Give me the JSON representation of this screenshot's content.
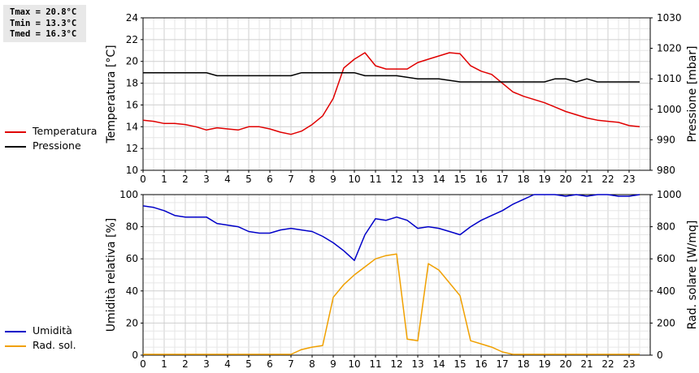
{
  "stats": {
    "tmax": "Tmax = 20.8°C",
    "tmin": "Tmin = 13.3°C",
    "tmed": "Tmed = 16.3°C"
  },
  "legend_top": [
    {
      "label": "Temperatura",
      "color": "#e00000"
    },
    {
      "label": "Pressione",
      "color": "#000000"
    }
  ],
  "legend_bottom": [
    {
      "label": "Umidità",
      "color": "#0000c8"
    },
    {
      "label": "Rad. sol.",
      "color": "#f0a000"
    }
  ],
  "chart_data": [
    {
      "type": "line",
      "xlim": [
        0,
        24
      ],
      "xticks": [
        "0",
        "1",
        "2",
        "3",
        "4",
        "5",
        "6",
        "7",
        "8",
        "9",
        "10",
        "11",
        "12",
        "13",
        "14",
        "15",
        "16",
        "17",
        "18",
        "19",
        "20",
        "21",
        "22",
        "23"
      ],
      "ylabel": "Temperatura [°C]",
      "ylim": [
        10,
        24
      ],
      "yticks": [
        "10",
        "12",
        "14",
        "16",
        "18",
        "20",
        "22",
        "24"
      ],
      "ylabel_right": "Pressione [mbar]",
      "ylim_right": [
        980,
        1030
      ],
      "yticks_right": [
        "980",
        "990",
        "1000",
        "1010",
        "1020",
        "1030"
      ],
      "grid": true,
      "series": [
        {
          "name": "Temperatura",
          "axis": "left",
          "color": "#e00000",
          "x": [
            0,
            0.5,
            1,
            1.5,
            2,
            2.5,
            3,
            3.5,
            4,
            4.5,
            5,
            5.5,
            6,
            6.5,
            7,
            7.5,
            8,
            8.5,
            9,
            9.5,
            10,
            10.25,
            10.5,
            11,
            11.5,
            12,
            12.5,
            13,
            13.5,
            14,
            14.5,
            15,
            15.5,
            16,
            16.5,
            17,
            17.5,
            18,
            18.5,
            19,
            19.5,
            20,
            20.5,
            21,
            21.5,
            22,
            22.5,
            23,
            23.5
          ],
          "y": [
            14.6,
            14.5,
            14.3,
            14.3,
            14.2,
            14.0,
            13.7,
            13.9,
            13.8,
            13.7,
            14.0,
            14.0,
            13.8,
            13.5,
            13.3,
            13.6,
            14.2,
            15.0,
            16.6,
            19.4,
            20.2,
            20.5,
            20.8,
            19.6,
            19.3,
            19.3,
            19.3,
            19.9,
            20.2,
            20.5,
            20.8,
            20.7,
            19.6,
            19.1,
            18.8,
            18.0,
            17.2,
            16.8,
            16.5,
            16.2,
            15.8,
            15.4,
            15.1,
            14.8,
            14.6,
            14.5,
            14.4,
            14.1,
            14.0
          ]
        },
        {
          "name": "Pressione",
          "axis": "right",
          "color": "#000000",
          "x": [
            0,
            1,
            2,
            3,
            3.5,
            4,
            5,
            6,
            7,
            7.5,
            8,
            9,
            10,
            10.5,
            11,
            12,
            13,
            14,
            15,
            16,
            17,
            18,
            19,
            19.5,
            20,
            20.5,
            21,
            21.5,
            22,
            23,
            23.5
          ],
          "y": [
            1012,
            1012,
            1012,
            1012,
            1011,
            1011,
            1011,
            1011,
            1011,
            1012,
            1012,
            1012,
            1012,
            1011,
            1011,
            1011,
            1010,
            1010,
            1009,
            1009,
            1009,
            1009,
            1009,
            1010,
            1010,
            1009,
            1010,
            1009,
            1009,
            1009,
            1009
          ]
        }
      ]
    },
    {
      "type": "line",
      "xlim": [
        0,
        24
      ],
      "xticks": [
        "0",
        "1",
        "2",
        "3",
        "4",
        "5",
        "6",
        "7",
        "8",
        "9",
        "10",
        "11",
        "12",
        "13",
        "14",
        "15",
        "16",
        "17",
        "18",
        "19",
        "20",
        "21",
        "22",
        "23"
      ],
      "ylabel": "Umidità relativa [%]",
      "ylim": [
        0,
        100
      ],
      "yticks": [
        "0",
        "20",
        "40",
        "60",
        "80",
        "100"
      ],
      "ylabel_right": "Rad. solare [W/mq]",
      "ylim_right": [
        0,
        1000
      ],
      "yticks_right": [
        "0",
        "200",
        "400",
        "600",
        "800",
        "1000"
      ],
      "grid": true,
      "series": [
        {
          "name": "Umidità",
          "axis": "left",
          "color": "#0000c8",
          "x": [
            0,
            0.5,
            1,
            1.5,
            2,
            2.5,
            3,
            3.5,
            4,
            4.5,
            5,
            5.5,
            6,
            6.5,
            7,
            7.5,
            8,
            8.5,
            9,
            9.5,
            10,
            10.5,
            11,
            11.5,
            12,
            12.5,
            13,
            13.5,
            14,
            14.5,
            15,
            15.5,
            16,
            16.5,
            17,
            17.5,
            18,
            18.5,
            19,
            19.5,
            20,
            20.5,
            21,
            21.5,
            22,
            22.5,
            23,
            23.5
          ],
          "y": [
            93,
            92,
            90,
            87,
            86,
            86,
            86,
            82,
            81,
            80,
            77,
            76,
            76,
            78,
            79,
            78,
            77,
            74,
            70,
            65,
            59,
            75,
            85,
            84,
            86,
            84,
            79,
            80,
            79,
            77,
            75,
            80,
            84,
            87,
            90,
            94,
            97,
            100,
            100,
            100,
            99,
            100,
            99,
            100,
            100,
            99,
            99,
            100
          ]
        },
        {
          "name": "Rad. sol.",
          "axis": "right",
          "color": "#f0a000",
          "x": [
            0,
            1,
            2,
            3,
            4,
            5,
            6,
            7,
            7.5,
            8,
            8.5,
            9,
            9.5,
            10,
            10.5,
            11,
            11.5,
            12,
            12.5,
            13,
            13.5,
            14,
            14.5,
            15,
            15.5,
            16,
            16.5,
            17,
            17.5,
            18,
            19,
            20,
            21,
            22,
            23,
            23.5
          ],
          "y": [
            5,
            5,
            5,
            5,
            5,
            5,
            5,
            5,
            35,
            50,
            60,
            360,
            440,
            500,
            550,
            600,
            620,
            630,
            100,
            90,
            570,
            530,
            450,
            370,
            90,
            70,
            50,
            20,
            5,
            5,
            5,
            5,
            5,
            5,
            5,
            5
          ]
        }
      ]
    }
  ]
}
